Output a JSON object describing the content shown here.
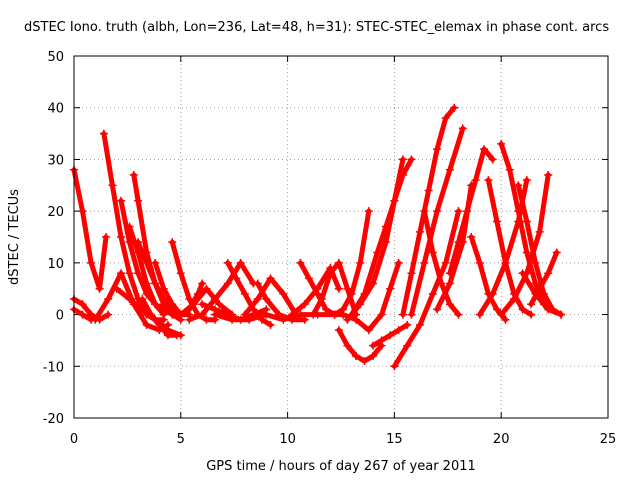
{
  "chart_data": {
    "type": "scatter",
    "title": "dSTEC Iono. truth (albh, Lon=236, Lat=48, h=31): STEC-STEC_elemax in phase cont. arcs",
    "xlabel": "GPS time / hours of day 267 of year 2011",
    "ylabel": "dSTEC  / TECUs",
    "xlim": [
      0,
      25
    ],
    "ylim": [
      -20,
      50
    ],
    "x_ticks": [
      "0",
      "5",
      "10",
      "15",
      "20",
      "25"
    ],
    "y_ticks": [
      "-20",
      "-10",
      "0",
      "10",
      "20",
      "30",
      "40",
      "50"
    ],
    "grid": true,
    "marker": "plus",
    "color": "#ff0000",
    "series": [
      {
        "x": [
          0.0,
          0.4,
          0.8,
          1.2,
          1.5
        ],
        "y": [
          28,
          20,
          10,
          5,
          15
        ]
      },
      {
        "x": [
          0.0,
          0.4,
          0.8
        ],
        "y": [
          1,
          0,
          -1
        ]
      },
      {
        "x": [
          0.0,
          0.4,
          0.8,
          1.2,
          1.6
        ],
        "y": [
          3,
          2,
          0,
          -1,
          0
        ]
      },
      {
        "x": [
          1.0,
          1.6,
          2.2,
          2.8,
          3.4,
          4.0,
          4.4
        ],
        "y": [
          -1,
          3,
          8,
          2,
          -2,
          -3,
          -2
        ]
      },
      {
        "x": [
          1.4,
          1.8,
          2.2,
          2.6,
          3.0,
          3.4,
          3.8,
          4.2
        ],
        "y": [
          35,
          25,
          15,
          8,
          3,
          0,
          -1,
          -1
        ]
      },
      {
        "x": [
          2.2,
          2.6,
          3.0,
          3.4,
          3.8,
          4.2,
          4.6
        ],
        "y": [
          22,
          14,
          8,
          4,
          2,
          1,
          0
        ]
      },
      {
        "x": [
          2.8,
          3.0,
          3.4,
          3.8,
          4.2,
          4.6,
          5.0
        ],
        "y": [
          27,
          22,
          12,
          6,
          2,
          0,
          -1
        ]
      },
      {
        "x": [
          2.6,
          3.0,
          3.4,
          3.8,
          4.2
        ],
        "y": [
          17,
          12,
          6,
          2,
          0
        ]
      },
      {
        "x": [
          2.0,
          2.6,
          3.2,
          3.8,
          4.4,
          5.0
        ],
        "y": [
          5,
          3,
          1,
          -1,
          -3,
          -4
        ]
      },
      {
        "x": [
          3.0,
          3.4,
          3.8,
          4.2,
          4.6,
          5.0,
          5.4
        ],
        "y": [
          14,
          10,
          6,
          3,
          1,
          0,
          0
        ]
      },
      {
        "x": [
          3.2,
          3.6,
          4.0,
          4.4,
          4.8
        ],
        "y": [
          3,
          0,
          -2,
          -4,
          -4
        ]
      },
      {
        "x": [
          3.8,
          4.2,
          4.6,
          5.0,
          5.4,
          5.8,
          6.0
        ],
        "y": [
          10,
          5,
          2,
          0,
          1,
          4,
          6
        ]
      },
      {
        "x": [
          4.6,
          5.0,
          5.4,
          5.8,
          6.2,
          6.6
        ],
        "y": [
          14,
          8,
          3,
          0,
          -1,
          -1
        ]
      },
      {
        "x": [
          5.0,
          5.6,
          6.2,
          6.8,
          7.4
        ],
        "y": [
          0,
          2,
          5,
          2,
          0
        ]
      },
      {
        "x": [
          5.4,
          6.0,
          6.6,
          7.2,
          7.8,
          8.4
        ],
        "y": [
          -1,
          0,
          3,
          6,
          10,
          6
        ]
      },
      {
        "x": [
          6.0,
          6.6,
          7.2,
          7.8,
          8.4,
          9.0
        ],
        "y": [
          2,
          1,
          0,
          -1,
          0,
          1
        ]
      },
      {
        "x": [
          7.2,
          7.6,
          8.0,
          8.4,
          8.8,
          9.2
        ],
        "y": [
          10,
          7,
          4,
          1,
          -1,
          -2
        ]
      },
      {
        "x": [
          8.0,
          8.6,
          9.2,
          9.8,
          10.4
        ],
        "y": [
          0,
          3,
          7,
          4,
          0
        ]
      },
      {
        "x": [
          8.6,
          9.0,
          9.6,
          10.2,
          10.8
        ],
        "y": [
          6,
          3,
          0,
          -1,
          -1
        ]
      },
      {
        "x": [
          6.6,
          7.4,
          8.2,
          9.0,
          9.8,
          10.6,
          11.4,
          12.2
        ],
        "y": [
          0,
          -1,
          -1,
          0,
          -1,
          0,
          0,
          0
        ]
      },
      {
        "x": [
          10.6,
          11.0,
          11.4,
          11.8,
          12.2,
          12.6
        ],
        "y": [
          10,
          7,
          4,
          1,
          0,
          0
        ]
      },
      {
        "x": [
          10.2,
          10.8,
          11.4,
          12.0,
          12.4
        ],
        "y": [
          0,
          2,
          5,
          9,
          5
        ]
      },
      {
        "x": [
          11.2,
          11.6,
          12.0,
          12.4,
          12.8,
          13.2
        ],
        "y": [
          0,
          3,
          8,
          10,
          5,
          0
        ]
      },
      {
        "x": [
          12.2,
          12.6,
          13.0,
          13.4,
          13.8
        ],
        "y": [
          0,
          1,
          4,
          10,
          20
        ]
      },
      {
        "x": [
          12.4,
          12.8,
          13.2,
          13.6,
          14.0,
          14.4
        ],
        "y": [
          -3,
          -6,
          -8,
          -9,
          -8,
          -6
        ]
      },
      {
        "x": [
          12.8,
          13.4,
          14.0,
          14.6,
          15.0,
          15.4
        ],
        "y": [
          -1,
          2,
          6,
          14,
          22,
          30
        ]
      },
      {
        "x": [
          12.6,
          13.2,
          13.8,
          14.4,
          14.8,
          15.2
        ],
        "y": [
          0,
          -1,
          -3,
          0,
          5,
          10
        ]
      },
      {
        "x": [
          13.0,
          13.6,
          14.2,
          14.6,
          15.0,
          15.4,
          15.8
        ],
        "y": [
          0,
          4,
          12,
          17,
          22,
          27,
          30
        ]
      },
      {
        "x": [
          14.0,
          14.4,
          14.8,
          15.2,
          15.6
        ],
        "y": [
          -6,
          -5,
          -4,
          -3,
          -2
        ]
      },
      {
        "x": [
          15.0,
          15.6,
          16.2,
          16.8,
          17.4,
          18.0
        ],
        "y": [
          -10,
          -6,
          -2,
          4,
          10,
          20
        ]
      },
      {
        "x": [
          15.4,
          15.8,
          16.2,
          16.6,
          17.0,
          17.4,
          17.8
        ],
        "y": [
          0,
          8,
          16,
          24,
          32,
          38,
          40
        ]
      },
      {
        "x": [
          15.8,
          16.4,
          17.0,
          17.6,
          18.2
        ],
        "y": [
          0,
          10,
          20,
          28,
          36
        ]
      },
      {
        "x": [
          16.4,
          16.8,
          17.2,
          17.6,
          18.0
        ],
        "y": [
          20,
          12,
          6,
          2,
          0
        ]
      },
      {
        "x": [
          17.0,
          17.6,
          18.2,
          18.6
        ],
        "y": [
          1,
          6,
          14,
          25
        ]
      },
      {
        "x": [
          17.6,
          18.0,
          18.4,
          18.8,
          19.2,
          19.6
        ],
        "y": [
          8,
          14,
          20,
          26,
          32,
          30
        ]
      },
      {
        "x": [
          18.6,
          19.0,
          19.4,
          19.8,
          20.2
        ],
        "y": [
          15,
          10,
          4,
          1,
          -1
        ]
      },
      {
        "x": [
          19.4,
          19.8,
          20.2,
          20.6,
          21.0,
          21.4
        ],
        "y": [
          26,
          18,
          10,
          4,
          1,
          0
        ]
      },
      {
        "x": [
          20.0,
          20.4,
          20.8,
          21.2,
          21.6,
          22.0
        ],
        "y": [
          33,
          28,
          20,
          12,
          6,
          2
        ]
      },
      {
        "x": [
          19.0,
          19.6,
          20.2,
          20.8,
          21.2
        ],
        "y": [
          0,
          4,
          10,
          18,
          26
        ]
      },
      {
        "x": [
          20.8,
          21.2,
          21.6,
          22.0,
          22.4,
          22.8
        ],
        "y": [
          25,
          18,
          10,
          4,
          1,
          0
        ]
      },
      {
        "x": [
          20.0,
          20.6,
          21.2,
          21.8,
          22.2
        ],
        "y": [
          0,
          3,
          8,
          16,
          27
        ]
      },
      {
        "x": [
          21.4,
          21.8,
          22.2,
          22.6
        ],
        "y": [
          2,
          5,
          8,
          12
        ]
      },
      {
        "x": [
          21.0,
          21.6,
          22.2,
          22.8
        ],
        "y": [
          8,
          4,
          1,
          0
        ]
      }
    ]
  }
}
